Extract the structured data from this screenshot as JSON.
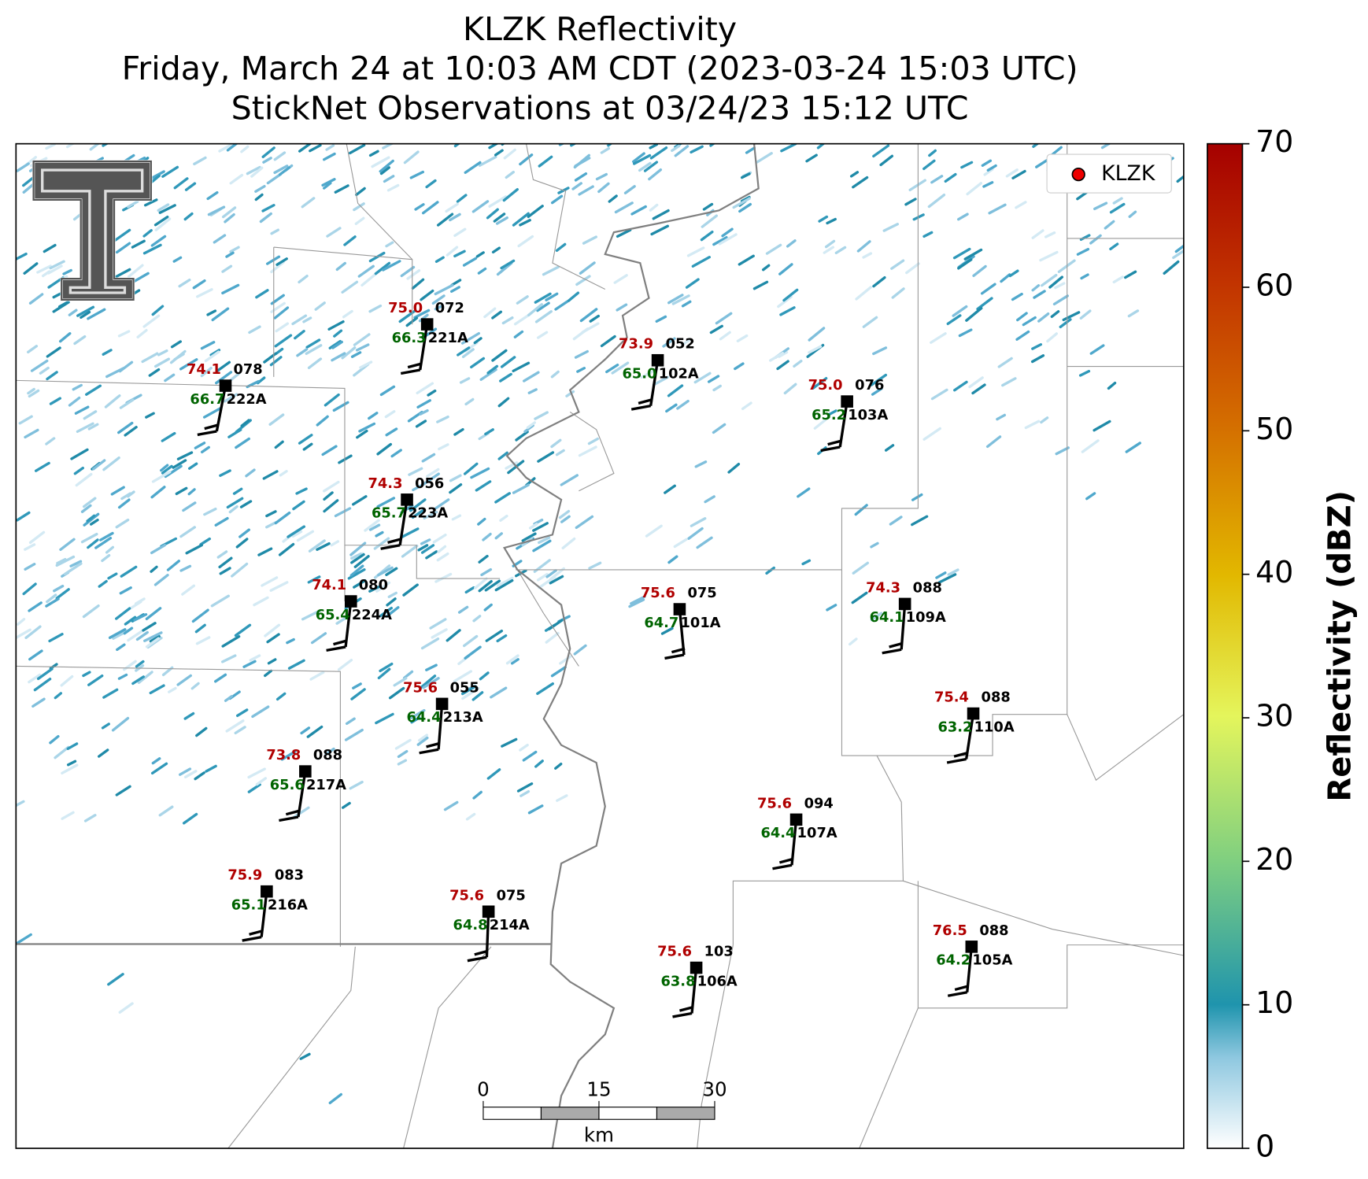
{
  "header": {
    "title": "KLZK Reflectivity",
    "subtitle": "Friday, March 24 at 10:03 AM CDT (2023-03-24 15:03 UTC)",
    "obs_time": "StickNet Observations at 03/24/23 15:12 UTC"
  },
  "legend": {
    "label": "KLZK"
  },
  "stations": [
    {
      "id": "222A",
      "temperature": "74.1",
      "dewpoint": "66.7",
      "pressure": "078"
    },
    {
      "id": "221A",
      "temperature": "75.0",
      "dewpoint": "66.3",
      "pressure": "072"
    },
    {
      "id": "102A",
      "temperature": "73.9",
      "dewpoint": "65.0",
      "pressure": "052"
    },
    {
      "id": "103A",
      "temperature": "75.0",
      "dewpoint": "65.2",
      "pressure": "076"
    },
    {
      "id": "223A",
      "temperature": "74.3",
      "dewpoint": "65.7",
      "pressure": "056"
    },
    {
      "id": "224A",
      "temperature": "74.1",
      "dewpoint": "65.4",
      "pressure": "080"
    },
    {
      "id": "101A",
      "temperature": "75.6",
      "dewpoint": "64.7",
      "pressure": "075"
    },
    {
      "id": "109A",
      "temperature": "74.3",
      "dewpoint": "64.1",
      "pressure": "088"
    },
    {
      "id": "213A",
      "temperature": "75.6",
      "dewpoint": "64.4",
      "pressure": "055"
    },
    {
      "id": "110A",
      "temperature": "75.4",
      "dewpoint": "63.2",
      "pressure": "088"
    },
    {
      "id": "217A",
      "temperature": "73.8",
      "dewpoint": "65.6",
      "pressure": "088"
    },
    {
      "id": "107A",
      "temperature": "75.6",
      "dewpoint": "64.4",
      "pressure": "094"
    },
    {
      "id": "216A",
      "temperature": "75.9",
      "dewpoint": "65.1",
      "pressure": "083"
    },
    {
      "id": "214A",
      "temperature": "75.6",
      "dewpoint": "64.8",
      "pressure": "075"
    },
    {
      "id": "106A",
      "temperature": "75.6",
      "dewpoint": "63.8",
      "pressure": "103"
    },
    {
      "id": "105A",
      "temperature": "76.5",
      "dewpoint": "64.2",
      "pressure": "088"
    }
  ],
  "colorbar": {
    "label": "Reflectivity (dBZ)",
    "range": [
      0,
      70
    ],
    "ticks": [
      0,
      10,
      20,
      30,
      40,
      50,
      60,
      70
    ]
  },
  "scale_bar": {
    "ticks": [
      0,
      15,
      30
    ],
    "unit": "km"
  }
}
